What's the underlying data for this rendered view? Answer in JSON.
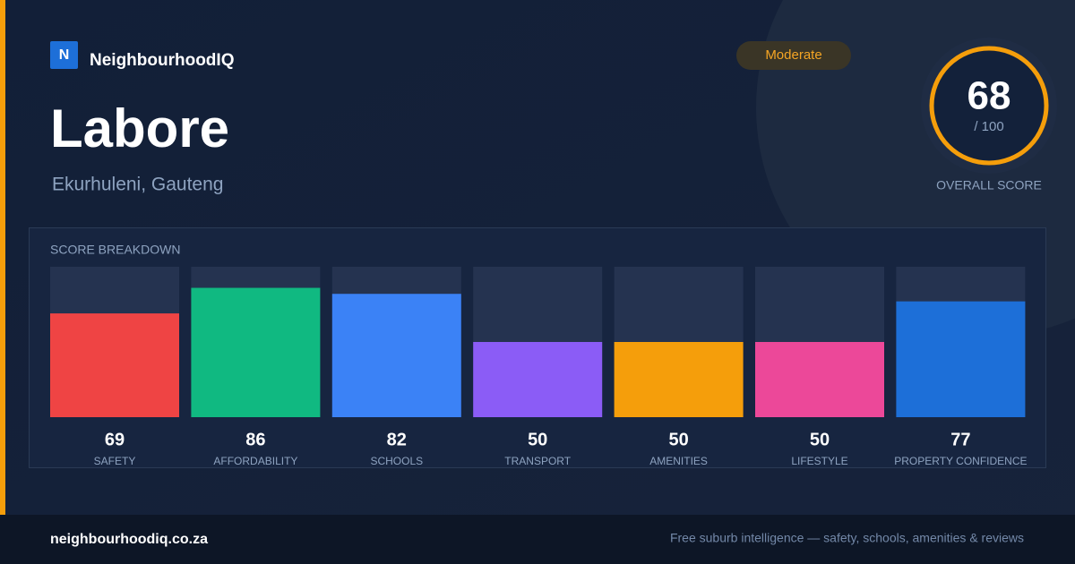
{
  "brand": {
    "logo": "N",
    "name": "NeighbourhoodIQ"
  },
  "badge": "Moderate",
  "title": "Labore",
  "location": "Ekurhuleni, Gauteng",
  "overall": {
    "score": 68,
    "out_of": "/ 100",
    "caption": "OVERALL SCORE"
  },
  "chart_data": {
    "type": "bar",
    "title": "SCORE BREAKDOWN",
    "categories": [
      "SAFETY",
      "AFFORDABILITY",
      "SCHOOLS",
      "TRANSPORT",
      "AMENITIES",
      "LIFESTYLE",
      "PROPERTY CONFIDENCE"
    ],
    "values": [
      69,
      86,
      82,
      50,
      50,
      50,
      77
    ],
    "colors": [
      "#ef4444",
      "#10b981",
      "#3b82f6",
      "#8b5cf6",
      "#f59e0b",
      "#ec4899",
      "#1d6fd8"
    ],
    "ylim": [
      0,
      100
    ]
  },
  "footer": {
    "url": "neighbourhoodiq.co.za",
    "tagline": "Free suburb intelligence — safety, schools, amenities & reviews"
  }
}
